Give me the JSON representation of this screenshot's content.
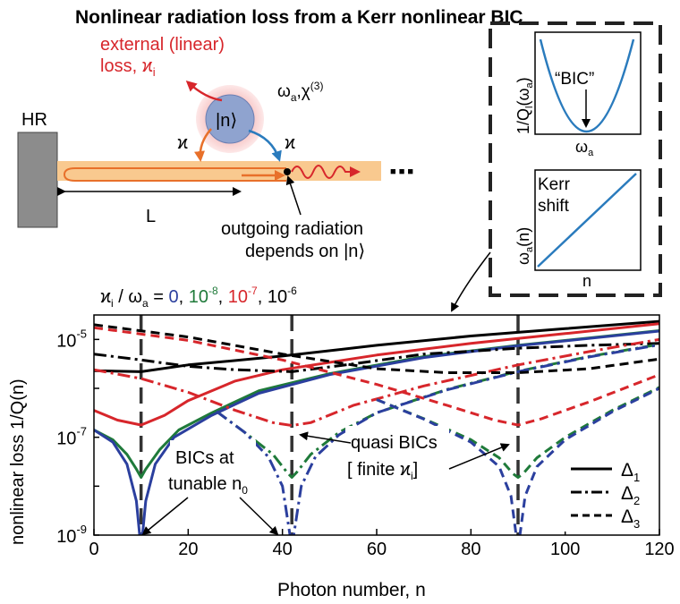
{
  "title": "Nonlinear radiation loss from a Kerr nonlinear BIC",
  "schematic": {
    "mirror_label": "HR",
    "external_loss_line1": "external (linear)",
    "external_loss_line2": "loss, ϰ",
    "external_loss_sub": "i",
    "state_label": "|n⟩",
    "coupling_left": "ϰ",
    "coupling_right": "ϰ",
    "omega_label": "ω",
    "omega_sub": "a",
    "chi_label": ",χ",
    "chi_sup": "(3)",
    "length_label": "L",
    "ellipsis": "■ ■ ■",
    "outgoing_line1": "outgoing radiation",
    "outgoing_line2": "depends on |n⟩"
  },
  "inset": {
    "top_ylabel": "1/Q",
    "top_ylabel_sub": "l",
    "top_ylabel_tail": "(ω",
    "top_ylabel_sub2": "a",
    "top_ylabel_end": ")",
    "top_xlabel": "ω",
    "top_xlabel_sub": "a",
    "top_annotation": "“BIC”",
    "bottom_ylabel": "ω",
    "bottom_ylabel_sub": "a",
    "bottom_ylabel_tail": "(n)",
    "bottom_xlabel": "n",
    "bottom_annotation_line1": "Kerr",
    "bottom_annotation_line2": "shift"
  },
  "kappa_legend": {
    "prefix": "ϰ",
    "prefix_sub": "i",
    "prefix_mid": " / ω",
    "prefix_sub2": "a",
    "prefix_eq": " = ",
    "entries": [
      {
        "text": "0",
        "color": "#2b3f9e"
      },
      {
        "text": "10",
        "sup": "-8",
        "color": "#1f7a3a"
      },
      {
        "text": "10",
        "sup": "-7",
        "color": "#d7262b"
      },
      {
        "text": "10",
        "sup": "-6",
        "color": "#000000"
      }
    ]
  },
  "annotations": {
    "bics_line1": "BICs at",
    "bics_line2": "tunable n",
    "bics_sub": "0",
    "quasi_line1": "quasi BICs",
    "quasi_line2": "[ finite ϰ",
    "quasi_sub": "i",
    "quasi_end": "]"
  },
  "linestyle_legend": [
    {
      "label": "Δ",
      "sub": "1",
      "style": "solid"
    },
    {
      "label": "Δ",
      "sub": "2",
      "style": "dashdot"
    },
    {
      "label": "Δ",
      "sub": "3",
      "style": "dashed"
    }
  ],
  "colors": {
    "blue": "#2b3f9e",
    "green": "#1f7a3a",
    "red": "#d7262b",
    "black": "#000000",
    "waveguide": "#f9c98f",
    "orange": "#e8702a"
  },
  "chart_data": {
    "type": "line",
    "xlabel": "Photon number, n",
    "ylabel": "nonlinear loss 1/Q(n)",
    "xlim": [
      0,
      120
    ],
    "ylim_log10": [
      -9,
      -4.5
    ],
    "x_ticks": [
      0,
      20,
      40,
      60,
      80,
      100,
      120
    ],
    "y_ticks": [
      {
        "base": "10",
        "exp": "-9",
        "log": -9
      },
      {
        "base": "10",
        "exp": "-7",
        "log": -7
      },
      {
        "base": "10",
        "exp": "-5",
        "log": -5
      }
    ],
    "bic_positions": [
      10,
      42,
      90
    ],
    "series": [
      {
        "name": "Δ1, ϰi/ωa=1e-6",
        "style": "solid",
        "color": "#000000",
        "points": [
          [
            0,
            -5.64
          ],
          [
            10,
            -5.66
          ],
          [
            20,
            -5.52
          ],
          [
            40,
            -5.34
          ],
          [
            60,
            -5.12
          ],
          [
            80,
            -4.93
          ],
          [
            100,
            -4.78
          ],
          [
            120,
            -4.63
          ]
        ]
      },
      {
        "name": "Δ1, ϰi/ωa=1e-7",
        "style": "solid",
        "color": "#d7262b",
        "points": [
          [
            0,
            -6.45
          ],
          [
            5,
            -6.65
          ],
          [
            10,
            -6.75
          ],
          [
            15,
            -6.55
          ],
          [
            20,
            -6.25
          ],
          [
            30,
            -5.85
          ],
          [
            40,
            -5.62
          ],
          [
            60,
            -5.32
          ],
          [
            80,
            -5.08
          ],
          [
            100,
            -4.88
          ],
          [
            120,
            -4.68
          ]
        ]
      },
      {
        "name": "Δ1, ϰi/ωa=1e-8",
        "style": "solid",
        "color": "#1f7a3a",
        "points": [
          [
            0,
            -6.85
          ],
          [
            4,
            -7.05
          ],
          [
            7,
            -7.35
          ],
          [
            9,
            -7.65
          ],
          [
            10,
            -7.82
          ],
          [
            11,
            -7.65
          ],
          [
            14,
            -7.25
          ],
          [
            18,
            -6.85
          ],
          [
            25,
            -6.5
          ],
          [
            35,
            -6.05
          ],
          [
            50,
            -5.7
          ],
          [
            70,
            -5.35
          ],
          [
            90,
            -5.12
          ],
          [
            120,
            -4.82
          ]
        ]
      },
      {
        "name": "Δ1, ϰi/ωa=0",
        "style": "solid",
        "color": "#2b3f9e",
        "points": [
          [
            0,
            -6.85
          ],
          [
            4,
            -7.1
          ],
          [
            7,
            -7.55
          ],
          [
            9,
            -8.3
          ],
          [
            9.7,
            -9.0
          ],
          [
            10.3,
            -9.0
          ],
          [
            11,
            -8.3
          ],
          [
            13,
            -7.55
          ],
          [
            17,
            -7.0
          ],
          [
            25,
            -6.55
          ],
          [
            35,
            -6.1
          ],
          [
            50,
            -5.72
          ],
          [
            70,
            -5.37
          ],
          [
            90,
            -5.13
          ],
          [
            120,
            -4.83
          ]
        ]
      },
      {
        "name": "Δ2, ϰi/ωa=1e-6",
        "style": "dashdot",
        "color": "#000000",
        "points": [
          [
            0,
            -5.3
          ],
          [
            10,
            -5.42
          ],
          [
            20,
            -5.55
          ],
          [
            30,
            -5.62
          ],
          [
            42,
            -5.66
          ],
          [
            55,
            -5.5
          ],
          [
            70,
            -5.3
          ],
          [
            90,
            -5.18
          ],
          [
            105,
            -5.12
          ],
          [
            120,
            -5.08
          ]
        ]
      },
      {
        "name": "Δ2, ϰi/ωa=1e-7",
        "style": "dashdot",
        "color": "#d7262b",
        "points": [
          [
            0,
            -5.62
          ],
          [
            10,
            -5.8
          ],
          [
            20,
            -6.08
          ],
          [
            30,
            -6.45
          ],
          [
            38,
            -6.7
          ],
          [
            42,
            -6.76
          ],
          [
            46,
            -6.7
          ],
          [
            55,
            -6.35
          ],
          [
            70,
            -5.95
          ],
          [
            90,
            -5.52
          ],
          [
            105,
            -5.25
          ],
          [
            120,
            -5.0
          ]
        ]
      },
      {
        "name": "Δ2, ϰi/ωa=1e-8",
        "style": "dashdot",
        "color": "#1f7a3a",
        "points": [
          [
            26,
            -6.47
          ],
          [
            32,
            -6.9
          ],
          [
            38,
            -7.35
          ],
          [
            41,
            -7.72
          ],
          [
            42,
            -7.82
          ],
          [
            43,
            -7.72
          ],
          [
            46,
            -7.35
          ],
          [
            52,
            -6.9
          ],
          [
            60,
            -6.5
          ],
          [
            75,
            -6.02
          ],
          [
            90,
            -5.65
          ],
          [
            105,
            -5.35
          ],
          [
            120,
            -5.1
          ]
        ]
      },
      {
        "name": "Δ2, ϰi/ωa=0",
        "style": "dashdot",
        "color": "#2b3f9e",
        "points": [
          [
            26,
            -6.47
          ],
          [
            32,
            -6.9
          ],
          [
            37,
            -7.4
          ],
          [
            40,
            -8.0
          ],
          [
            41.6,
            -9.0
          ],
          [
            42.4,
            -9.0
          ],
          [
            44,
            -8.0
          ],
          [
            47,
            -7.4
          ],
          [
            52,
            -6.95
          ],
          [
            60,
            -6.5
          ],
          [
            75,
            -6.03
          ],
          [
            90,
            -5.66
          ],
          [
            105,
            -5.36
          ],
          [
            120,
            -5.11
          ]
        ]
      },
      {
        "name": "Δ3, ϰi/ωa=1e-6",
        "style": "dashed",
        "color": "#000000",
        "points": [
          [
            0,
            -4.7
          ],
          [
            20,
            -4.95
          ],
          [
            40,
            -5.3
          ],
          [
            60,
            -5.6
          ],
          [
            75,
            -5.68
          ],
          [
            90,
            -5.68
          ],
          [
            105,
            -5.6
          ],
          [
            120,
            -5.4
          ]
        ]
      },
      {
        "name": "Δ3, ϰi/ωa=1e-7",
        "style": "dashed",
        "color": "#d7262b",
        "points": [
          [
            0,
            -4.76
          ],
          [
            20,
            -5.02
          ],
          [
            40,
            -5.42
          ],
          [
            60,
            -5.92
          ],
          [
            75,
            -6.35
          ],
          [
            85,
            -6.65
          ],
          [
            90,
            -6.75
          ],
          [
            95,
            -6.62
          ],
          [
            105,
            -6.28
          ],
          [
            120,
            -5.72
          ]
        ]
      },
      {
        "name": "Δ3, ϰi/ωa=1e-8",
        "style": "dashed",
        "color": "#1f7a3a",
        "points": [
          [
            60,
            -6.23
          ],
          [
            70,
            -6.62
          ],
          [
            80,
            -7.05
          ],
          [
            86,
            -7.42
          ],
          [
            89,
            -7.75
          ],
          [
            90,
            -7.82
          ],
          [
            91,
            -7.75
          ],
          [
            94,
            -7.42
          ],
          [
            100,
            -7.0
          ],
          [
            110,
            -6.45
          ],
          [
            120,
            -5.98
          ]
        ]
      },
      {
        "name": "Δ3, ϰi/ωa=0",
        "style": "dashed",
        "color": "#2b3f9e",
        "points": [
          [
            60,
            -6.23
          ],
          [
            70,
            -6.63
          ],
          [
            80,
            -7.1
          ],
          [
            86,
            -7.6
          ],
          [
            88.5,
            -8.2
          ],
          [
            89.6,
            -9.0
          ],
          [
            90.4,
            -9.0
          ],
          [
            91.5,
            -8.2
          ],
          [
            94,
            -7.6
          ],
          [
            100,
            -7.05
          ],
          [
            110,
            -6.48
          ],
          [
            120,
            -6.0
          ]
        ]
      }
    ]
  }
}
